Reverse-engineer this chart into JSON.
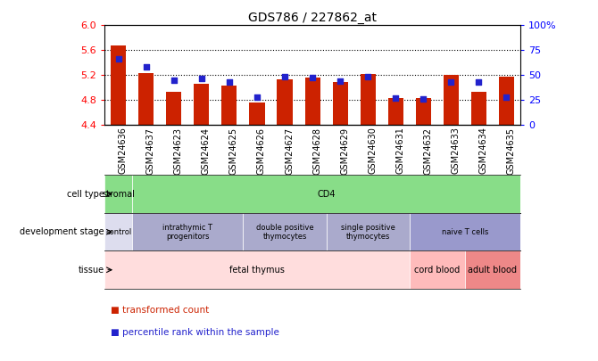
{
  "title": "GDS786 / 227862_at",
  "samples": [
    "GSM24636",
    "GSM24637",
    "GSM24623",
    "GSM24624",
    "GSM24625",
    "GSM24626",
    "GSM24627",
    "GSM24628",
    "GSM24629",
    "GSM24630",
    "GSM24631",
    "GSM24632",
    "GSM24633",
    "GSM24634",
    "GSM24635"
  ],
  "transformed_count": [
    5.68,
    5.23,
    4.93,
    5.06,
    5.03,
    4.75,
    5.13,
    5.16,
    5.08,
    5.21,
    4.83,
    4.83,
    5.2,
    4.93,
    5.17
  ],
  "percentile_rank": [
    66,
    58,
    45,
    46,
    43,
    28,
    48,
    47,
    44,
    48,
    27,
    26,
    43,
    43,
    28
  ],
  "ylim": [
    4.4,
    6.0
  ],
  "yticks": [
    4.4,
    4.8,
    5.2,
    5.6,
    6.0
  ],
  "right_ylim": [
    0,
    100
  ],
  "right_yticks": [
    0,
    25,
    50,
    75,
    100
  ],
  "bar_color": "#CC2200",
  "dot_color": "#2222CC",
  "cell_type_row": {
    "label": "cell type",
    "groups": [
      {
        "text": "stromal",
        "start": 0,
        "end": 1,
        "color": "#88dd88"
      },
      {
        "text": "CD4",
        "start": 1,
        "end": 15,
        "color": "#88dd88"
      }
    ]
  },
  "dev_stage_row": {
    "label": "development stage",
    "groups": [
      {
        "text": "control",
        "start": 0,
        "end": 1,
        "color": "#ddddee"
      },
      {
        "text": "intrathymic T\nprogenitors",
        "start": 1,
        "end": 5,
        "color": "#aaaacc"
      },
      {
        "text": "double positive\nthymocytes",
        "start": 5,
        "end": 8,
        "color": "#aaaacc"
      },
      {
        "text": "single positive\nthymocytes",
        "start": 8,
        "end": 11,
        "color": "#aaaacc"
      },
      {
        "text": "naive T cells",
        "start": 11,
        "end": 15,
        "color": "#9999cc"
      }
    ]
  },
  "tissue_row": {
    "label": "tissue",
    "groups": [
      {
        "text": "fetal thymus",
        "start": 0,
        "end": 11,
        "color": "#ffdddd"
      },
      {
        "text": "cord blood",
        "start": 11,
        "end": 13,
        "color": "#ffbbbb"
      },
      {
        "text": "adult blood",
        "start": 13,
        "end": 15,
        "color": "#ee8888"
      }
    ]
  },
  "legend_items": [
    {
      "label": "transformed count",
      "color": "#CC2200"
    },
    {
      "label": "percentile rank within the sample",
      "color": "#2222CC"
    }
  ]
}
